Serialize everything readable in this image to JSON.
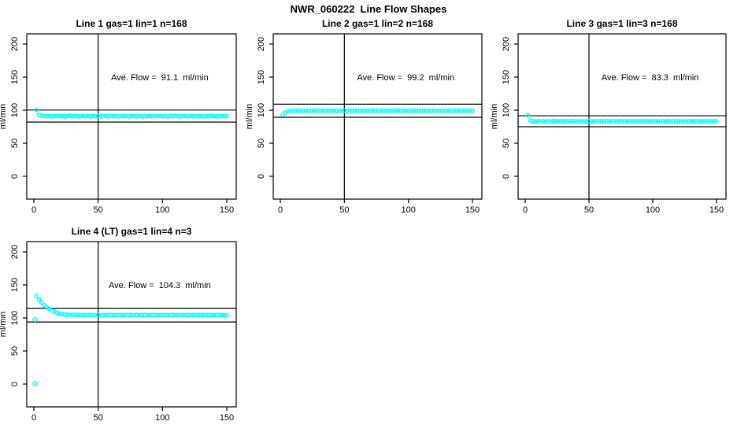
{
  "page": {
    "title": "NWR_060222  Line Flow Shapes",
    "background": "#ffffff"
  },
  "colors": {
    "points": "#00ffff",
    "axis": "#000000",
    "reference_lines": "#000000",
    "text": "#000000"
  },
  "chart_data": [
    {
      "type": "scatter",
      "title": "Line 1 gas=1 lin=1 n=168",
      "ylabel": "ml/min",
      "annotation": "Ave. Flow =  91.1  ml/min",
      "ave_flow_ml_min": 91.1,
      "x_ticks": [
        0,
        50,
        100,
        150
      ],
      "y_ticks": [
        0,
        50,
        100,
        150,
        200
      ],
      "xlim": [
        0,
        150
      ],
      "ylim": [
        0,
        200
      ],
      "vline_x": 50,
      "hlines": [
        100.2,
        82.0
      ],
      "x_start": 2,
      "x_step": 2,
      "y": [
        100.3,
        93.2,
        91.8,
        91.2,
        90.8,
        91.3,
        90.6,
        91.0,
        91.5,
        90.7,
        91.2,
        90.5,
        91.1,
        91.6,
        90.8,
        91.3,
        90.6,
        91.0,
        91.4,
        90.7,
        91.1,
        90.5,
        91.3,
        90.8,
        91.2,
        90.6,
        91.0,
        91.5,
        90.7,
        91.2,
        90.8,
        91.3,
        90.5,
        91.1,
        90.9,
        91.4,
        90.6,
        91.0,
        91.3,
        90.7,
        91.2,
        90.5,
        91.1,
        90.8,
        91.4,
        90.6,
        91.2,
        90.9,
        91.3,
        90.7,
        91.0,
        90.5,
        91.2,
        90.8,
        91.4,
        90.6,
        91.1,
        90.9,
        91.3,
        90.7,
        91.2,
        90.6,
        91.0,
        90.8,
        91.3,
        90.5,
        91.1,
        90.9,
        91.4,
        90.7,
        91.0,
        90.6,
        91.2,
        90.9,
        91.1
      ],
      "extra_points": []
    },
    {
      "type": "scatter",
      "title": "Line 2 gas=1 lin=2 n=168",
      "ylabel": "ml/min",
      "annotation": "Ave. Flow =  99.2  ml/min",
      "ave_flow_ml_min": 99.2,
      "x_ticks": [
        0,
        50,
        100,
        150
      ],
      "y_ticks": [
        0,
        50,
        100,
        150,
        200
      ],
      "xlim": [
        0,
        150
      ],
      "ylim": [
        0,
        200
      ],
      "vline_x": 50,
      "hlines": [
        109.1,
        89.3
      ],
      "x_start": 2,
      "x_step": 2,
      "y": [
        93.0,
        96.5,
        98.0,
        98.8,
        99.0,
        99.4,
        98.9,
        99.5,
        99.1,
        99.6,
        98.8,
        99.3,
        99.7,
        99.0,
        99.4,
        98.9,
        99.5,
        99.2,
        99.6,
        99.0,
        99.3,
        98.8,
        99.4,
        99.1,
        99.5,
        99.0,
        99.6,
        99.2,
        98.9,
        99.4,
        99.1,
        99.5,
        98.8,
        99.3,
        99.0,
        99.6,
        99.2,
        99.4,
        98.9,
        99.5,
        99.1,
        99.3,
        98.8,
        99.6,
        99.0,
        99.4,
        99.2,
        99.5,
        98.9,
        99.3,
        99.1,
        99.6,
        99.0,
        99.4,
        98.8,
        99.5,
        99.2,
        99.3,
        99.0,
        99.6,
        98.9,
        99.4,
        99.1,
        99.5,
        99.0,
        99.3,
        98.8,
        99.6,
        99.2,
        99.4,
        99.1,
        99.5,
        99.0,
        99.3,
        99.2
      ],
      "extra_points": []
    },
    {
      "type": "scatter",
      "title": "Line 3 gas=1 lin=3 n=168",
      "ylabel": "ml/min",
      "annotation": "Ave. Flow =  83.3  ml/min",
      "ave_flow_ml_min": 83.3,
      "x_ticks": [
        0,
        50,
        100,
        150
      ],
      "y_ticks": [
        0,
        50,
        100,
        150,
        200
      ],
      "xlim": [
        0,
        150
      ],
      "ylim": [
        0,
        200
      ],
      "vline_x": 50,
      "hlines": [
        91.6,
        75.0
      ],
      "x_start": 2,
      "x_step": 2,
      "y": [
        92.5,
        84.5,
        83.6,
        83.0,
        83.5,
        82.9,
        83.4,
        83.0,
        83.6,
        82.8,
        83.3,
        83.7,
        82.9,
        83.4,
        83.1,
        83.6,
        82.8,
        83.2,
        83.5,
        82.9,
        83.3,
        83.0,
        83.6,
        82.8,
        83.4,
        83.1,
        83.5,
        82.9,
        83.3,
        83.6,
        83.0,
        83.4,
        82.8,
        83.2,
        83.5,
        82.9,
        83.4,
        83.0,
        83.6,
        82.8,
        83.3,
        83.1,
        83.5,
        82.9,
        83.4,
        83.0,
        83.6,
        83.2,
        82.8,
        83.4,
        83.1,
        83.5,
        82.9,
        83.3,
        83.0,
        83.6,
        82.8,
        83.4,
        83.1,
        83.5,
        83.0,
        83.3,
        82.9,
        83.6,
        83.1,
        83.4,
        82.8,
        83.3,
        83.0,
        83.5,
        83.2,
        83.4,
        82.9,
        83.3,
        83.1
      ],
      "extra_points": []
    },
    {
      "type": "scatter",
      "title": "Line 4 (LT) gas=1 lin=4 n=3",
      "ylabel": "ml/min",
      "annotation": "Ave. Flow =  104.3  ml/min",
      "ave_flow_ml_min": 104.3,
      "x_ticks": [
        0,
        50,
        100,
        150
      ],
      "y_ticks": [
        0,
        50,
        100,
        150,
        200
      ],
      "xlim": [
        0,
        150
      ],
      "ylim": [
        0,
        200
      ],
      "vline_x": 50,
      "hlines": [
        114.7,
        93.9
      ],
      "x_start": 2,
      "x_step": 2,
      "y": [
        133.2,
        127.8,
        123.2,
        119.3,
        116.1,
        113.5,
        111.3,
        109.5,
        108.0,
        106.8,
        105.9,
        105.4,
        105.0,
        104.8,
        104.9,
        104.6,
        104.8,
        104.5,
        104.7,
        104.4,
        104.6,
        104.3,
        104.7,
        104.4,
        104.6,
        104.2,
        104.5,
        104.7,
        104.3,
        104.6,
        104.4,
        104.7,
        104.2,
        104.5,
        104.3,
        104.6,
        104.4,
        104.7,
        104.3,
        104.5,
        104.2,
        104.6,
        104.4,
        104.5,
        104.3,
        104.7,
        104.2,
        104.5,
        104.4,
        104.6,
        104.3,
        104.5,
        104.2,
        104.6,
        104.4,
        104.7,
        104.3,
        104.5,
        104.4,
        104.6,
        104.2,
        104.5,
        104.3,
        104.6,
        104.4,
        104.5,
        104.3,
        104.7,
        104.4,
        104.5,
        104.2,
        104.6,
        104.3,
        104.5,
        104.4
      ],
      "extra_points": [
        [
          1,
          97.6
        ],
        [
          1,
          0.6
        ]
      ]
    }
  ]
}
